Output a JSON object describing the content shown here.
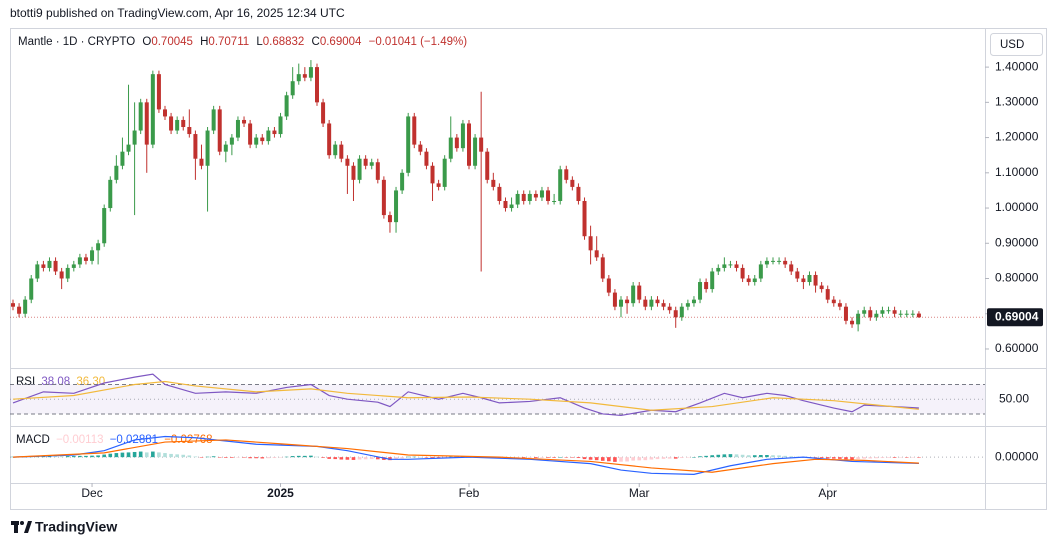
{
  "chart_data": {
    "type": "candlestick",
    "header": "btotti9 published on TradingView.com, Apr 16, 2025 12:34 UTC",
    "symbol_label": "Mantle · 1D · CRYPTO",
    "legend_keys": [
      "O",
      "H",
      "L",
      "C"
    ],
    "change_label": "−0.01041 (−1.49%)",
    "currency": "USD",
    "brand": "TradingView",
    "up_color": "#3a9a4a",
    "down_color": "#c0312e",
    "ylim": [
      0.546,
      1.511
    ],
    "yticks": [
      {
        "value": 0.6,
        "label": "0.60000"
      },
      {
        "value": 0.7,
        "label": "0.70000"
      },
      {
        "value": 0.8,
        "label": "0.80000"
      },
      {
        "value": 0.9,
        "label": "0.90000"
      },
      {
        "value": 1.0,
        "label": "1.00000"
      },
      {
        "value": 1.1,
        "label": "1.10000"
      },
      {
        "value": 1.2,
        "label": "1.20000"
      },
      {
        "value": 1.3,
        "label": "1.30000"
      },
      {
        "value": 1.4,
        "label": "1.40000"
      }
    ],
    "xticks": [
      {
        "value": 13,
        "label": "Dec"
      },
      {
        "value": 44,
        "label": "2025"
      },
      {
        "value": 75,
        "label": "Feb"
      },
      {
        "value": 103,
        "label": "Mar"
      },
      {
        "value": 134,
        "label": "Apr"
      }
    ],
    "ohlc": [
      [
        0.73,
        0.74,
        0.71,
        0.72
      ],
      [
        0.72,
        0.73,
        0.69,
        0.7
      ],
      [
        0.7,
        0.75,
        0.69,
        0.74
      ],
      [
        0.74,
        0.81,
        0.73,
        0.8
      ],
      [
        0.8,
        0.85,
        0.79,
        0.84
      ],
      [
        0.84,
        0.85,
        0.82,
        0.83
      ],
      [
        0.83,
        0.86,
        0.82,
        0.85
      ],
      [
        0.85,
        0.86,
        0.81,
        0.82
      ],
      [
        0.82,
        0.83,
        0.77,
        0.8
      ],
      [
        0.8,
        0.84,
        0.79,
        0.83
      ],
      [
        0.83,
        0.85,
        0.82,
        0.84
      ],
      [
        0.84,
        0.87,
        0.83,
        0.86
      ],
      [
        0.86,
        0.87,
        0.84,
        0.85
      ],
      [
        0.85,
        0.89,
        0.84,
        0.88
      ],
      [
        0.88,
        0.91,
        0.84,
        0.9
      ],
      [
        0.9,
        1.01,
        0.89,
        1.0
      ],
      [
        1.0,
        1.09,
        0.99,
        1.08
      ],
      [
        1.08,
        1.15,
        1.07,
        1.12
      ],
      [
        1.12,
        1.2,
        1.11,
        1.16
      ],
      [
        1.16,
        1.35,
        1.15,
        1.18
      ],
      [
        1.18,
        1.3,
        0.98,
        1.22
      ],
      [
        1.22,
        1.31,
        1.21,
        1.3
      ],
      [
        1.3,
        1.31,
        1.1,
        1.18
      ],
      [
        1.18,
        1.39,
        1.17,
        1.38
      ],
      [
        1.38,
        1.39,
        1.27,
        1.28
      ],
      [
        1.28,
        1.29,
        1.25,
        1.26
      ],
      [
        1.26,
        1.27,
        1.21,
        1.22
      ],
      [
        1.22,
        1.26,
        1.21,
        1.25
      ],
      [
        1.25,
        1.26,
        1.22,
        1.23
      ],
      [
        1.23,
        1.28,
        1.2,
        1.21
      ],
      [
        1.21,
        1.22,
        1.08,
        1.14
      ],
      [
        1.14,
        1.18,
        1.11,
        1.12
      ],
      [
        1.12,
        1.23,
        0.99,
        1.22
      ],
      [
        1.22,
        1.29,
        1.21,
        1.28
      ],
      [
        1.28,
        1.29,
        1.15,
        1.16
      ],
      [
        1.16,
        1.19,
        1.13,
        1.18
      ],
      [
        1.18,
        1.21,
        1.15,
        1.2
      ],
      [
        1.2,
        1.26,
        1.19,
        1.25
      ],
      [
        1.25,
        1.26,
        1.23,
        1.24
      ],
      [
        1.24,
        1.25,
        1.17,
        1.18
      ],
      [
        1.18,
        1.21,
        1.17,
        1.2
      ],
      [
        1.2,
        1.21,
        1.18,
        1.19
      ],
      [
        1.19,
        1.23,
        1.18,
        1.22
      ],
      [
        1.22,
        1.23,
        1.2,
        1.21
      ],
      [
        1.21,
        1.27,
        1.2,
        1.26
      ],
      [
        1.26,
        1.33,
        1.25,
        1.32
      ],
      [
        1.32,
        1.4,
        1.31,
        1.36
      ],
      [
        1.36,
        1.41,
        1.35,
        1.38
      ],
      [
        1.38,
        1.4,
        1.36,
        1.37
      ],
      [
        1.37,
        1.42,
        1.36,
        1.4
      ],
      [
        1.4,
        1.41,
        1.29,
        1.3
      ],
      [
        1.3,
        1.31,
        1.23,
        1.24
      ],
      [
        1.24,
        1.25,
        1.14,
        1.15
      ],
      [
        1.15,
        1.19,
        1.14,
        1.18
      ],
      [
        1.18,
        1.19,
        1.13,
        1.14
      ],
      [
        1.14,
        1.15,
        1.04,
        1.12
      ],
      [
        1.12,
        1.13,
        1.02,
        1.08
      ],
      [
        1.08,
        1.15,
        1.07,
        1.14
      ],
      [
        1.14,
        1.15,
        1.11,
        1.12
      ],
      [
        1.12,
        1.14,
        1.11,
        1.13
      ],
      [
        1.13,
        1.14,
        1.07,
        1.08
      ],
      [
        1.08,
        1.09,
        0.97,
        0.98
      ],
      [
        0.98,
        0.99,
        0.93,
        0.96
      ],
      [
        0.96,
        1.06,
        0.93,
        1.05
      ],
      [
        1.05,
        1.11,
        1.04,
        1.1
      ],
      [
        1.1,
        1.27,
        1.09,
        1.26
      ],
      [
        1.26,
        1.27,
        1.17,
        1.18
      ],
      [
        1.18,
        1.19,
        1.15,
        1.16
      ],
      [
        1.16,
        1.17,
        1.11,
        1.12
      ],
      [
        1.12,
        1.13,
        1.02,
        1.07
      ],
      [
        1.07,
        1.08,
        1.05,
        1.06
      ],
      [
        1.06,
        1.15,
        1.05,
        1.14
      ],
      [
        1.14,
        1.26,
        1.13,
        1.2
      ],
      [
        1.2,
        1.21,
        1.16,
        1.17
      ],
      [
        1.17,
        1.25,
        1.16,
        1.24
      ],
      [
        1.24,
        1.25,
        1.11,
        1.12
      ],
      [
        1.12,
        1.21,
        1.11,
        1.2
      ],
      [
        1.2,
        1.33,
        0.82,
        1.16
      ],
      [
        1.16,
        1.17,
        1.07,
        1.08
      ],
      [
        1.08,
        1.1,
        1.05,
        1.06
      ],
      [
        1.06,
        1.07,
        1.01,
        1.02
      ],
      [
        1.02,
        1.03,
        0.99,
        1.0
      ],
      [
        1.0,
        1.03,
        0.99,
        1.01
      ],
      [
        1.01,
        1.05,
        1.0,
        1.04
      ],
      [
        1.04,
        1.05,
        1.01,
        1.02
      ],
      [
        1.02,
        1.05,
        1.01,
        1.04
      ],
      [
        1.04,
        1.05,
        1.02,
        1.03
      ],
      [
        1.03,
        1.06,
        1.02,
        1.05
      ],
      [
        1.05,
        1.06,
        1.01,
        1.02
      ],
      [
        1.02,
        1.04,
        1.01,
        1.02
      ],
      [
        1.02,
        1.12,
        1.01,
        1.11
      ],
      [
        1.11,
        1.12,
        1.07,
        1.08
      ],
      [
        1.08,
        1.09,
        1.05,
        1.06
      ],
      [
        1.06,
        1.07,
        1.01,
        1.02
      ],
      [
        1.02,
        1.03,
        0.91,
        0.92
      ],
      [
        0.92,
        0.95,
        0.84,
        0.88
      ],
      [
        0.88,
        0.92,
        0.85,
        0.86
      ],
      [
        0.86,
        0.87,
        0.79,
        0.8
      ],
      [
        0.8,
        0.81,
        0.75,
        0.76
      ],
      [
        0.76,
        0.77,
        0.71,
        0.72
      ],
      [
        0.72,
        0.75,
        0.69,
        0.74
      ],
      [
        0.74,
        0.75,
        0.7,
        0.73
      ],
      [
        0.73,
        0.79,
        0.72,
        0.78
      ],
      [
        0.78,
        0.79,
        0.73,
        0.74
      ],
      [
        0.74,
        0.75,
        0.71,
        0.72
      ],
      [
        0.72,
        0.75,
        0.71,
        0.74
      ],
      [
        0.74,
        0.75,
        0.72,
        0.73
      ],
      [
        0.73,
        0.74,
        0.71,
        0.72
      ],
      [
        0.72,
        0.73,
        0.7,
        0.71
      ],
      [
        0.71,
        0.72,
        0.66,
        0.69
      ],
      [
        0.69,
        0.73,
        0.68,
        0.72
      ],
      [
        0.72,
        0.74,
        0.71,
        0.73
      ],
      [
        0.73,
        0.75,
        0.72,
        0.74
      ],
      [
        0.74,
        0.8,
        0.73,
        0.79
      ],
      [
        0.79,
        0.8,
        0.76,
        0.77
      ],
      [
        0.77,
        0.83,
        0.76,
        0.82
      ],
      [
        0.82,
        0.84,
        0.81,
        0.83
      ],
      [
        0.83,
        0.86,
        0.82,
        0.84
      ],
      [
        0.84,
        0.85,
        0.83,
        0.84
      ],
      [
        0.84,
        0.85,
        0.82,
        0.83
      ],
      [
        0.83,
        0.84,
        0.79,
        0.8
      ],
      [
        0.8,
        0.81,
        0.78,
        0.79
      ],
      [
        0.79,
        0.81,
        0.78,
        0.8
      ],
      [
        0.8,
        0.85,
        0.79,
        0.84
      ],
      [
        0.84,
        0.86,
        0.83,
        0.85
      ],
      [
        0.85,
        0.86,
        0.84,
        0.85
      ],
      [
        0.85,
        0.86,
        0.84,
        0.85
      ],
      [
        0.85,
        0.86,
        0.83,
        0.84
      ],
      [
        0.84,
        0.85,
        0.81,
        0.82
      ],
      [
        0.82,
        0.83,
        0.79,
        0.8
      ],
      [
        0.8,
        0.81,
        0.77,
        0.79
      ],
      [
        0.79,
        0.82,
        0.78,
        0.81
      ],
      [
        0.81,
        0.82,
        0.76,
        0.78
      ],
      [
        0.78,
        0.79,
        0.76,
        0.77
      ],
      [
        0.77,
        0.78,
        0.73,
        0.74
      ],
      [
        0.74,
        0.75,
        0.72,
        0.73
      ],
      [
        0.73,
        0.74,
        0.71,
        0.72
      ],
      [
        0.72,
        0.73,
        0.67,
        0.68
      ],
      [
        0.68,
        0.69,
        0.66,
        0.67
      ],
      [
        0.67,
        0.71,
        0.65,
        0.7
      ],
      [
        0.7,
        0.72,
        0.69,
        0.71
      ],
      [
        0.71,
        0.72,
        0.68,
        0.69
      ],
      [
        0.69,
        0.71,
        0.68,
        0.7
      ],
      [
        0.7,
        0.72,
        0.69,
        0.71
      ],
      [
        0.71,
        0.72,
        0.7,
        0.71
      ],
      [
        0.71,
        0.72,
        0.69,
        0.7
      ],
      [
        0.7,
        0.71,
        0.69,
        0.7
      ],
      [
        0.7,
        0.71,
        0.69,
        0.7
      ],
      [
        0.7,
        0.71,
        0.69,
        0.7
      ],
      [
        0.70045,
        0.70711,
        0.68832,
        0.69004
      ]
    ],
    "rsi": {
      "label": "RSI",
      "ylim": [
        15,
        91
      ],
      "yticks": [
        {
          "value": 50,
          "label": "50.00"
        }
      ],
      "levels": [
        30,
        70
      ],
      "series": [
        {
          "color": "#7e57c2",
          "x": [
            0,
            5,
            10,
            15,
            20,
            23,
            25,
            30,
            35,
            40,
            45,
            49,
            52,
            55,
            60,
            62,
            65,
            70,
            74,
            77,
            80,
            85,
            90,
            94,
            97,
            100,
            105,
            109,
            113,
            117,
            120,
            124,
            127,
            130,
            135,
            138,
            140,
            145,
            149
          ],
          "values": [
            45,
            60,
            58,
            72,
            80,
            84,
            70,
            58,
            60,
            58,
            66,
            70,
            55,
            50,
            46,
            40,
            60,
            50,
            58,
            52,
            45,
            47,
            52,
            38,
            30,
            28,
            35,
            33,
            45,
            58,
            52,
            58,
            55,
            48,
            38,
            33,
            42,
            40,
            38.08
          ]
        },
        {
          "color": "#f2b93b",
          "legend_label": "36.30",
          "x": [
            0,
            10,
            20,
            25,
            30,
            40,
            49,
            55,
            65,
            75,
            85,
            95,
            105,
            115,
            125,
            135,
            149
          ],
          "values": [
            50,
            55,
            70,
            74,
            68,
            60,
            64,
            58,
            52,
            53,
            50,
            45,
            35,
            40,
            52,
            48,
            36.3
          ]
        }
      ]
    },
    "macd": {
      "label": "MACD",
      "ylim": [
        -0.12,
        0.14
      ],
      "yticks": [
        {
          "value": 0,
          "label": "0.00000"
        }
      ],
      "histogram": {
        "legend_label": "−0.00113",
        "colors": [
          "#26a69a",
          "#b2dfdb",
          "#ff5252",
          "#ffcdd2"
        ],
        "values": [
          0.002,
          0.001,
          0.002,
          0.004,
          0.006,
          0.006,
          0.007,
          0.006,
          0.005,
          0.005,
          0.005,
          0.006,
          0.006,
          0.007,
          0.008,
          0.012,
          0.016,
          0.019,
          0.021,
          0.022,
          0.024,
          0.026,
          0.022,
          0.026,
          0.022,
          0.019,
          0.015,
          0.013,
          0.011,
          0.008,
          0.003,
          -0.001,
          0.002,
          0.004,
          -0.002,
          -0.003,
          -0.003,
          -0.001,
          -0.002,
          -0.005,
          -0.005,
          -0.006,
          -0.005,
          -0.004,
          -0.001,
          0.002,
          0.005,
          0.006,
          0.006,
          0.007,
          0.002,
          -0.003,
          -0.008,
          -0.009,
          -0.011,
          -0.012,
          -0.013,
          -0.011,
          -0.01,
          -0.009,
          -0.01,
          -0.013,
          -0.014,
          -0.01,
          -0.006,
          0.002,
          0.002,
          0.001,
          -0.001,
          -0.004,
          -0.004,
          -0.001,
          0.002,
          0.002,
          0.004,
          0.001,
          0.002,
          0.001,
          -0.002,
          -0.004,
          -0.006,
          -0.007,
          -0.006,
          -0.005,
          -0.005,
          -0.004,
          -0.004,
          -0.003,
          -0.003,
          -0.003,
          0.0,
          -0.001,
          -0.002,
          -0.004,
          -0.009,
          -0.012,
          -0.014,
          -0.017,
          -0.019,
          -0.022,
          -0.021,
          -0.02,
          -0.016,
          -0.015,
          -0.014,
          -0.011,
          -0.009,
          -0.008,
          -0.007,
          -0.007,
          -0.004,
          -0.002,
          0.0,
          0.004,
          0.006,
          0.009,
          0.011,
          0.013,
          0.014,
          0.013,
          0.011,
          0.009,
          0.009,
          0.01,
          0.01,
          0.009,
          0.008,
          0.006,
          0.004,
          0.002,
          0.0,
          -0.001,
          -0.002,
          -0.004,
          -0.006,
          -0.007,
          -0.008,
          -0.01,
          -0.011,
          -0.009,
          -0.007,
          -0.006,
          -0.005,
          -0.004,
          -0.003,
          -0.003,
          -0.002,
          -0.002,
          -0.001,
          -0.00113
        ]
      },
      "series": [
        {
          "color": "#2962ff",
          "legend_label": "−0.02881",
          "x": [
            0,
            10,
            15,
            20,
            25,
            30,
            40,
            50,
            55,
            62,
            65,
            75,
            85,
            95,
            100,
            105,
            112,
            118,
            124,
            130,
            138,
            149
          ],
          "values": [
            0.0,
            0.01,
            0.03,
            0.08,
            0.096,
            0.09,
            0.06,
            0.05,
            0.03,
            -0.01,
            -0.01,
            0.0,
            -0.01,
            -0.03,
            -0.06,
            -0.075,
            -0.08,
            -0.04,
            -0.01,
            0.0,
            -0.02,
            -0.02881
          ]
        },
        {
          "color": "#ff6d00",
          "legend_label": "−0.02768",
          "x": [
            0,
            15,
            25,
            35,
            45,
            55,
            65,
            80,
            95,
            105,
            115,
            125,
            132,
            140,
            149
          ],
          "values": [
            0.0,
            0.02,
            0.07,
            0.08,
            0.06,
            0.04,
            0.01,
            0.0,
            -0.02,
            -0.05,
            -0.07,
            -0.03,
            -0.01,
            -0.015,
            -0.02768
          ]
        }
      ]
    }
  }
}
